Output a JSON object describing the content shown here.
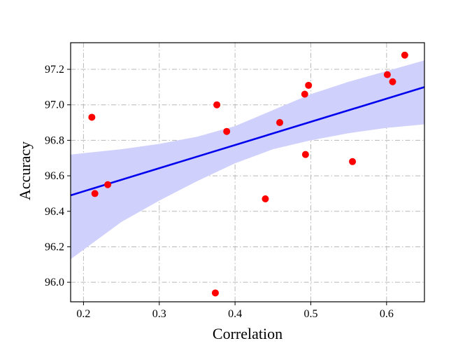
{
  "chart_data": {
    "type": "scatter",
    "xlabel": "Correlation",
    "ylabel": "Accuracy",
    "xlim": [
      0.183,
      0.65
    ],
    "ylim": [
      95.89,
      97.35
    ],
    "xticks": [
      0.2,
      0.3,
      0.4,
      0.5,
      0.6
    ],
    "xtick_labels": [
      "0.2",
      "0.3",
      "0.4",
      "0.5",
      "0.6"
    ],
    "yticks": [
      96.0,
      96.2,
      96.4,
      96.6,
      96.8,
      97.0,
      97.2
    ],
    "ytick_labels": [
      "96.0",
      "96.2",
      "96.4",
      "96.6",
      "96.8",
      "97.0",
      "97.2"
    ],
    "grid": true,
    "points": [
      {
        "x": 0.211,
        "y": 96.93
      },
      {
        "x": 0.215,
        "y": 96.5
      },
      {
        "x": 0.232,
        "y": 96.55
      },
      {
        "x": 0.374,
        "y": 95.94
      },
      {
        "x": 0.376,
        "y": 97.0
      },
      {
        "x": 0.389,
        "y": 96.85
      },
      {
        "x": 0.44,
        "y": 96.47
      },
      {
        "x": 0.459,
        "y": 96.9
      },
      {
        "x": 0.492,
        "y": 97.06
      },
      {
        "x": 0.493,
        "y": 96.72
      },
      {
        "x": 0.497,
        "y": 97.11
      },
      {
        "x": 0.555,
        "y": 96.68
      },
      {
        "x": 0.601,
        "y": 97.17
      },
      {
        "x": 0.608,
        "y": 97.13
      },
      {
        "x": 0.624,
        "y": 97.28
      }
    ],
    "regression": {
      "x": [
        0.183,
        0.65
      ],
      "y": [
        96.49,
        97.1
      ],
      "band_x": [
        0.183,
        0.25,
        0.3,
        0.35,
        0.4,
        0.45,
        0.5,
        0.55,
        0.6,
        0.65
      ],
      "band_lower": [
        96.13,
        96.34,
        96.46,
        96.57,
        96.67,
        96.75,
        96.8,
        96.84,
        96.87,
        96.89
      ],
      "band_upper": [
        96.72,
        96.75,
        96.78,
        96.82,
        96.88,
        96.97,
        97.06,
        97.13,
        97.19,
        97.25
      ]
    },
    "colors": {
      "points": "#ff0000",
      "line": "#0000ee",
      "band": "#d0d0fc",
      "grid": "#b8b8b8"
    }
  }
}
